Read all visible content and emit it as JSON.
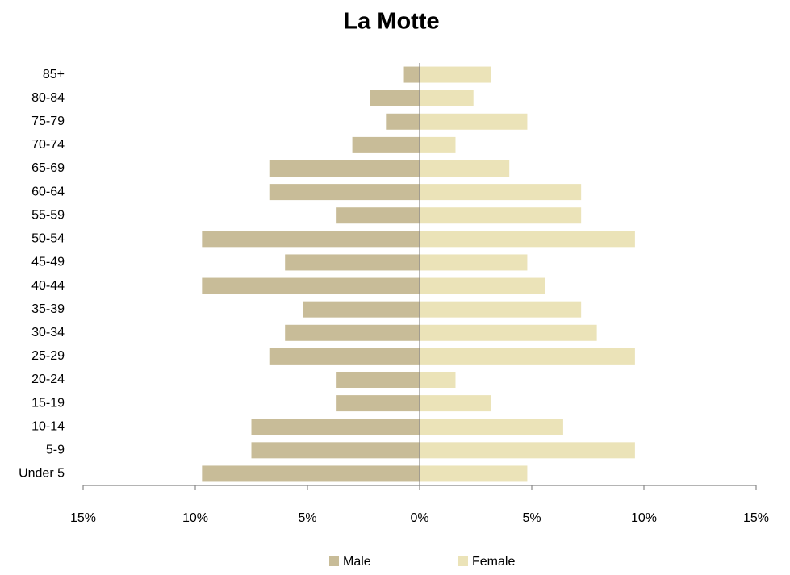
{
  "chart_data": {
    "type": "population_pyramid",
    "title": "La Motte",
    "categories": [
      "Under 5",
      "5-9",
      "10-14",
      "15-19",
      "20-24",
      "25-29",
      "30-34",
      "35-39",
      "40-44",
      "45-49",
      "50-54",
      "55-59",
      "60-64",
      "65-69",
      "70-74",
      "75-79",
      "80-84",
      "85+"
    ],
    "series": [
      {
        "name": "Male",
        "color": "#c8bc98",
        "values": [
          -9.7,
          -7.5,
          -7.5,
          -3.7,
          -3.7,
          -6.7,
          -6.0,
          -5.2,
          -9.7,
          -6.0,
          -9.7,
          -3.7,
          -6.7,
          -6.7,
          -3.0,
          -1.5,
          -2.2,
          -0.7
        ]
      },
      {
        "name": "Female",
        "color": "#ebe3b8",
        "values": [
          4.8,
          9.6,
          6.4,
          3.2,
          1.6,
          9.6,
          7.9,
          7.2,
          5.6,
          4.8,
          9.6,
          7.2,
          7.2,
          4.0,
          1.6,
          4.8,
          2.4,
          3.2
        ]
      }
    ],
    "xlim": [
      -15,
      15
    ],
    "xticks": [
      {
        "value": -15,
        "label": "15%"
      },
      {
        "value": -10,
        "label": "10%"
      },
      {
        "value": -5,
        "label": "5%"
      },
      {
        "value": 0,
        "label": "0%"
      },
      {
        "value": 5,
        "label": "5%"
      },
      {
        "value": 10,
        "label": "10%"
      },
      {
        "value": 15,
        "label": "15%"
      }
    ],
    "legend": "bottom"
  }
}
